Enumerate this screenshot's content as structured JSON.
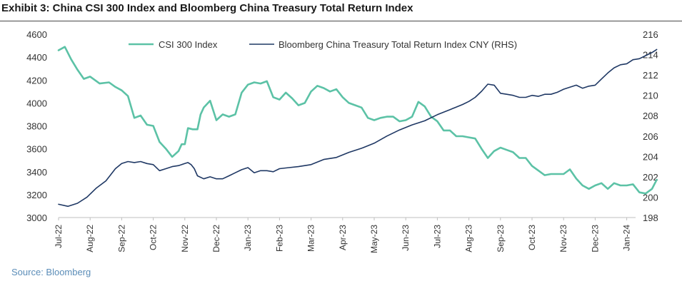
{
  "title": "Exhibit 3: China CSI 300 Index and Bloomberg China Treasury Total Return Index",
  "source": "Source: Bloomberg",
  "chart_data": {
    "type": "line",
    "x_ticks": [
      "Jul-22",
      "Aug-22",
      "Sep-22",
      "Oct-22",
      "Nov-22",
      "Dec-22",
      "Jan-23",
      "Feb-23",
      "Mar-23",
      "Apr-23",
      "May-23",
      "Jun-23",
      "Jul-23",
      "Aug-23",
      "Sep-23",
      "Oct-23",
      "Nov-23",
      "Dec-23",
      "Jan-24"
    ],
    "y_left": {
      "min": 3000,
      "max": 4600,
      "ticks": [
        3000,
        3200,
        3400,
        3600,
        3800,
        4000,
        4200,
        4400,
        4600
      ]
    },
    "y_right": {
      "min": 198,
      "max": 216,
      "ticks": [
        198,
        200,
        202,
        204,
        206,
        208,
        210,
        212,
        214,
        216
      ]
    },
    "series": [
      {
        "name": "CSI 300 Index",
        "axis": "left",
        "color": "#5cc2a6",
        "x": [
          0,
          0.2,
          0.4,
          0.6,
          0.8,
          1.0,
          1.3,
          1.6,
          1.8,
          2.0,
          2.2,
          2.4,
          2.6,
          2.8,
          3.0,
          3.2,
          3.4,
          3.6,
          3.8,
          3.9,
          4.0,
          4.1,
          4.25,
          4.4,
          4.5,
          4.6,
          4.8,
          5.0,
          5.2,
          5.4,
          5.6,
          5.8,
          6.0,
          6.2,
          6.4,
          6.6,
          6.8,
          7.0,
          7.2,
          7.4,
          7.6,
          7.8,
          8.0,
          8.2,
          8.4,
          8.6,
          8.8,
          9.0,
          9.2,
          9.4,
          9.6,
          9.8,
          10.0,
          10.2,
          10.4,
          10.6,
          10.8,
          11.0,
          11.2,
          11.4,
          11.6,
          11.8,
          12.0,
          12.2,
          12.4,
          12.6,
          12.8,
          13.0,
          13.2,
          13.4,
          13.6,
          13.8,
          14.0,
          14.2,
          14.4,
          14.6,
          14.8,
          15.0,
          15.2,
          15.4,
          15.6,
          15.8,
          16.0,
          16.2,
          16.4,
          16.6,
          16.8,
          17.0,
          17.2,
          17.4,
          17.6,
          17.8,
          18.0,
          18.2,
          18.4,
          18.6,
          18.8,
          18.95
        ],
        "values": [
          4460,
          4490,
          4380,
          4290,
          4210,
          4230,
          4170,
          4180,
          4140,
          4110,
          4060,
          3870,
          3890,
          3810,
          3800,
          3660,
          3600,
          3530,
          3580,
          3640,
          3640,
          3780,
          3770,
          3770,
          3900,
          3960,
          4020,
          3850,
          3900,
          3880,
          3900,
          4090,
          4160,
          4180,
          4170,
          4190,
          4050,
          4030,
          4090,
          4040,
          3980,
          4000,
          4100,
          4150,
          4130,
          4100,
          4120,
          4050,
          4000,
          3980,
          3960,
          3870,
          3850,
          3870,
          3880,
          3880,
          3840,
          3850,
          3880,
          4010,
          3970,
          3880,
          3840,
          3760,
          3760,
          3710,
          3710,
          3700,
          3690,
          3600,
          3520,
          3580,
          3610,
          3590,
          3570,
          3520,
          3520,
          3450,
          3410,
          3370,
          3380,
          3380,
          3380,
          3420,
          3340,
          3280,
          3250,
          3280,
          3300,
          3250,
          3300,
          3280,
          3280,
          3290,
          3220,
          3210,
          3250,
          3330
        ]
      },
      {
        "name": "Bloomberg China Treasury Total Return Index CNY (RHS)",
        "axis": "right",
        "color": "#1f3864",
        "x": [
          0,
          0.3,
          0.6,
          0.9,
          1.2,
          1.5,
          1.8,
          2.0,
          2.2,
          2.4,
          2.6,
          2.8,
          3.0,
          3.2,
          3.4,
          3.6,
          3.8,
          4.0,
          4.1,
          4.2,
          4.3,
          4.4,
          4.6,
          4.8,
          5.0,
          5.2,
          5.4,
          5.6,
          5.8,
          6.0,
          6.2,
          6.4,
          6.6,
          6.8,
          7.0,
          7.3,
          7.6,
          8.0,
          8.4,
          8.8,
          9.2,
          9.6,
          10.0,
          10.4,
          10.8,
          11.2,
          11.6,
          12.0,
          12.4,
          12.8,
          13.0,
          13.2,
          13.4,
          13.6,
          13.8,
          14.0,
          14.2,
          14.4,
          14.6,
          14.8,
          15.0,
          15.2,
          15.4,
          15.6,
          15.8,
          16.0,
          16.2,
          16.4,
          16.6,
          16.8,
          17.0,
          17.2,
          17.4,
          17.6,
          17.8,
          18.0,
          18.2,
          18.4,
          18.6,
          18.8,
          18.95
        ],
        "values": [
          199.3,
          199.1,
          199.4,
          200.0,
          200.9,
          201.6,
          202.8,
          203.3,
          203.5,
          203.4,
          203.5,
          203.3,
          203.2,
          202.6,
          202.8,
          203.0,
          203.1,
          203.3,
          203.4,
          203.2,
          202.8,
          202.1,
          201.8,
          202.0,
          201.8,
          201.8,
          202.1,
          202.4,
          202.7,
          202.9,
          202.4,
          202.6,
          202.6,
          202.5,
          202.8,
          202.9,
          203.0,
          203.2,
          203.7,
          203.9,
          204.4,
          204.8,
          205.3,
          206.0,
          206.6,
          207.1,
          207.5,
          208.1,
          208.6,
          209.1,
          209.4,
          209.8,
          210.4,
          211.1,
          211.0,
          210.2,
          210.1,
          210.0,
          209.8,
          209.8,
          210.0,
          209.9,
          210.1,
          210.1,
          210.3,
          210.6,
          210.8,
          211.0,
          210.7,
          210.9,
          211.0,
          211.6,
          212.2,
          212.7,
          213.0,
          213.1,
          213.5,
          213.6,
          213.9,
          214.2,
          214.5
        ]
      }
    ]
  }
}
